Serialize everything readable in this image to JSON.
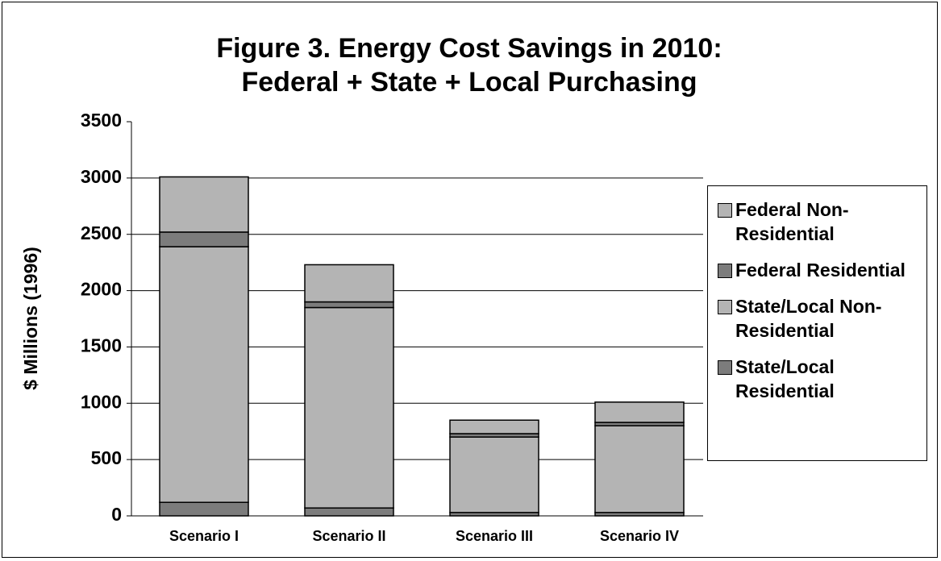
{
  "chart_data": {
    "type": "stacked_bar",
    "title": [
      "Figure 3.  Energy Cost Savings in 2010:",
      "Federal + State + Local Purchasing"
    ],
    "y_label": "$ Millions (1996)",
    "categories": [
      "Scenario I",
      "Scenario II",
      "Scenario III",
      "Scenario IV"
    ],
    "series": [
      {
        "name": "Federal Non-Residential",
        "color": "#b4b4b4",
        "values": [
          490,
          330,
          120,
          180
        ]
      },
      {
        "name": "Federal Residential",
        "color": "#7c7c7c",
        "values": [
          130,
          50,
          30,
          30
        ]
      },
      {
        "name": "State/Local Non-Residential",
        "color": "#b4b4b4",
        "values": [
          2270,
          1780,
          670,
          770
        ]
      },
      {
        "name": "State/Local Residential",
        "color": "#7c7c7c",
        "values": [
          120,
          70,
          30,
          30
        ]
      }
    ],
    "ylim": [
      0,
      3500
    ],
    "yticks": [
      0,
      500,
      1000,
      1500,
      2000,
      2500,
      3000,
      3500
    ],
    "grid": true,
    "legend": "right"
  }
}
